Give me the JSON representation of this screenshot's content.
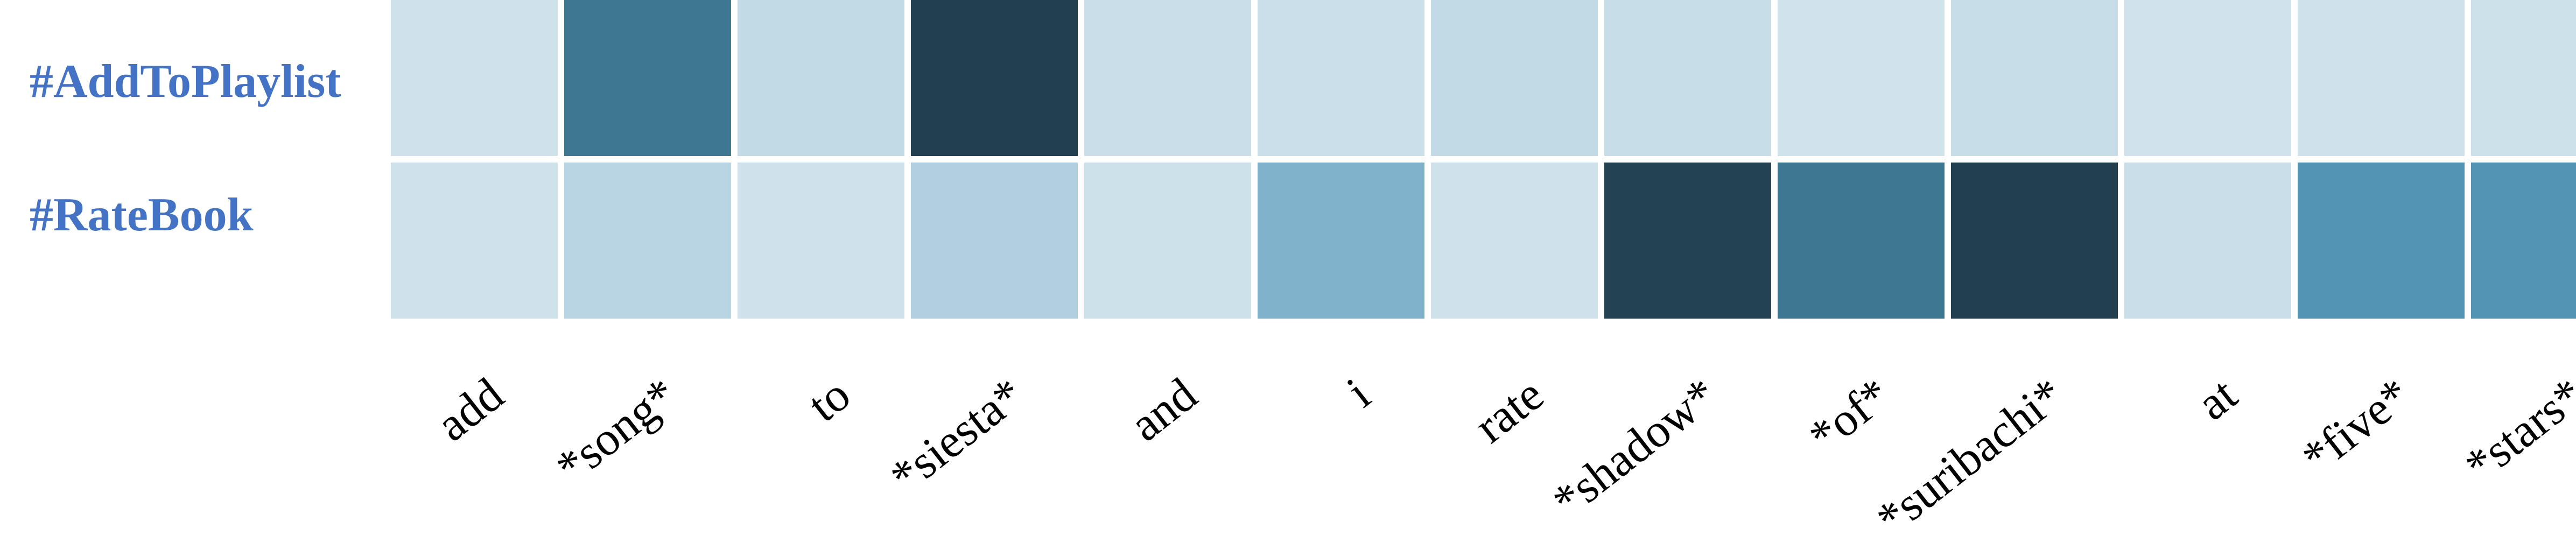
{
  "chart_data": {
    "type": "heatmap",
    "title": "",
    "xlabel": "",
    "ylabel": "",
    "rows": [
      "#AddToPlaylist",
      "#RateBook"
    ],
    "columns": [
      "add",
      "*song*",
      "to",
      "*siesta*",
      "and",
      "i",
      "rate",
      "*shadow*",
      "*of*",
      "*suribachi*",
      "at",
      "*five*",
      "*stars*"
    ],
    "values": [
      [
        0.1,
        0.75,
        0.22,
        1.0,
        0.18,
        0.15,
        0.22,
        0.2,
        0.08,
        0.2,
        0.08,
        0.1,
        0.12
      ],
      [
        0.1,
        0.25,
        0.1,
        0.28,
        0.12,
        0.45,
        0.1,
        0.98,
        0.75,
        1.0,
        0.18,
        0.62,
        0.62
      ]
    ],
    "colorscale": [
      "#d6e6ef",
      "#c7dde8",
      "#8fbad0",
      "#5699ba",
      "#366b83",
      "#213f4f"
    ],
    "row_label_color": "#4472c4",
    "legend": false,
    "grid": false
  }
}
